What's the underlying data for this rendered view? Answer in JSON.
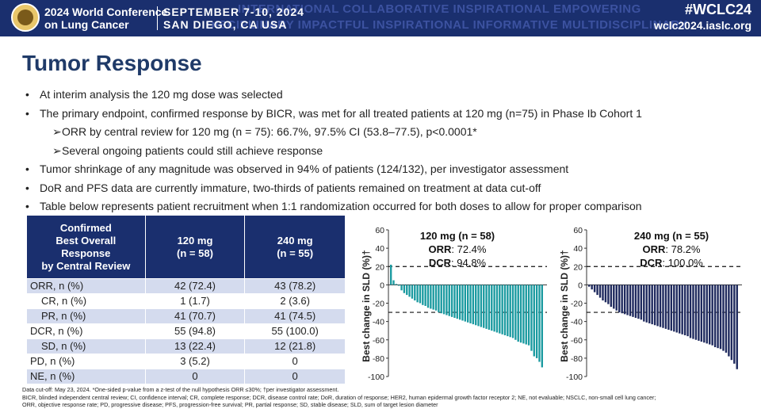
{
  "banner": {
    "conference_line1": "2024 World Conference",
    "conference_line2": "on Lung Cancer",
    "dates": "SEPTEMBER 7-10, 2024",
    "location": "SAN DIEGO, CA USA",
    "hashtag": "#WCLC24",
    "website": "wclc2024.iaslc.org",
    "bg_row1": "INTERNATIONAL  COLLABORATIVE  INSPIRATIONAL  EMPOWERING",
    "bg_row2": "DISCIPLINARY  IMPACTFUL  INSPIRATIONAL  INFORMATIVE  MULTIDISCIPLINARY",
    "colors": {
      "bg": "#1a2f6e",
      "text": "#ffffff"
    }
  },
  "title": "Tumor Response",
  "bullets": [
    "At interim analysis the 120 mg dose was selected",
    "The primary endpoint, confirmed response by BICR, was met for all treated patients at 120 mg (n=75) in Phase Ib Cohort 1"
  ],
  "sub_bullets": [
    "ORR by central review for 120 mg (n = 75): 66.7%, 97.5% CI (53.8–77.5), p<0.0001*",
    "Several ongoing patients could still achieve response"
  ],
  "bullets2": [
    "Tumor shrinkage of any magnitude was observed in 94% of patients (124/132), per investigator assessment",
    "DoR and PFS data are currently immature, two-thirds of patients remained on treatment at data cut-off",
    "Table below represents patient recruitment when 1:1 randomization occurred for both doses to allow for proper comparison"
  ],
  "table": {
    "header": {
      "col0": [
        "Confirmed",
        "Best Overall",
        "Response",
        "by Central Review"
      ],
      "col1": [
        "120 mg",
        "(n = 58)"
      ],
      "col2": [
        "240 mg",
        "(n = 55)"
      ]
    },
    "rows": [
      {
        "label": "ORR, n (%)",
        "v1": "42 (72.4)",
        "v2": "43 (78.2)",
        "indent": false
      },
      {
        "label": "CR, n (%)",
        "v1": "1 (1.7)",
        "v2": "2 (3.6)",
        "indent": true
      },
      {
        "label": "PR, n (%)",
        "v1": "41 (70.7)",
        "v2": "41 (74.5)",
        "indent": true
      },
      {
        "label": "DCR, n (%)",
        "v1": "55 (94.8)",
        "v2": "55 (100.0)",
        "indent": false
      },
      {
        "label": "SD, n (%)",
        "v1": "13 (22.4)",
        "v2": "12 (21.8)",
        "indent": true
      },
      {
        "label": "PD, n (%)",
        "v1": "3 (5.2)",
        "v2": "0",
        "indent": false
      },
      {
        "label": "NE, n (%)",
        "v1": "0",
        "v2": "0",
        "indent": false
      }
    ],
    "colors": {
      "header_bg": "#1a2f6e",
      "shade": "#d4dbee"
    }
  },
  "chart_data": [
    {
      "type": "bar",
      "title": "120 mg (n = 58)",
      "annotation_orr_label": "ORR",
      "annotation_orr": ": 72.4%",
      "annotation_dcr_label": "DCR",
      "annotation_dcr": ": 94.8%",
      "ylabel": "Best change in SLD (%)†",
      "ylim": [
        -100,
        60
      ],
      "yticks": [
        "60",
        "40",
        "20",
        "0",
        "-20",
        "-40",
        "-60",
        "-80",
        "-100"
      ],
      "reference_lines": [
        20,
        -30
      ],
      "color": "#1a9aa0",
      "values": [
        22,
        5,
        1,
        -1,
        -6,
        -9,
        -11,
        -13,
        -15,
        -17,
        -19,
        -20,
        -22,
        -23,
        -25,
        -26,
        -27,
        -28,
        -30,
        -31,
        -32,
        -33,
        -34,
        -35,
        -36,
        -37,
        -38,
        -39,
        -40,
        -41,
        -42,
        -43,
        -44,
        -45,
        -46,
        -47,
        -48,
        -49,
        -50,
        -51,
        -52,
        -53,
        -54,
        -55,
        -56,
        -57,
        -58,
        -60,
        -62,
        -63,
        -64,
        -65,
        -66,
        -72,
        -78,
        -80,
        -84,
        -90
      ]
    },
    {
      "type": "bar",
      "title": "240 mg (n = 55)",
      "annotation_orr_label": "ORR",
      "annotation_orr": ": 78.2%",
      "annotation_dcr_label": "DCR",
      "annotation_dcr": ": 100.0%",
      "ylabel": "Best change in SLD (%)†",
      "ylim": [
        -100,
        60
      ],
      "yticks": [
        "60",
        "40",
        "20",
        "0",
        "-20",
        "-40",
        "-60",
        "-80",
        "-100"
      ],
      "reference_lines": [
        20,
        -30
      ],
      "color": "#1f2a5e",
      "values": [
        -2,
        -5,
        -8,
        -11,
        -14,
        -17,
        -19,
        -21,
        -24,
        -26,
        -28,
        -30,
        -31,
        -32,
        -33,
        -34,
        -35,
        -36,
        -37,
        -38,
        -40,
        -41,
        -42,
        -43,
        -44,
        -45,
        -46,
        -47,
        -48,
        -49,
        -50,
        -51,
        -52,
        -53,
        -54,
        -55,
        -56,
        -58,
        -59,
        -60,
        -61,
        -62,
        -63,
        -64,
        -65,
        -66,
        -68,
        -69,
        -70,
        -72,
        -74,
        -78,
        -82,
        -86,
        -92
      ]
    }
  ],
  "footnote": {
    "line1": "Data cut-off: May 23, 2024. *One-sided p-value from a z-test of the null hypothesis ORR ≤30%; †per investigator assessment.",
    "line2": "BICR, blinded independent central review; CI, confidence interval; CR, complete response; DCR, disease control rate; DoR, duration of response; HER2, human epidermal growth factor receptor 2; NE, not evaluable; NSCLC, non-small cell lung cancer;",
    "line3": "ORR, objective response rate; PD, progressive disease; PFS, progression-free survival; PR, partial response; SD, stable disease; SLD, sum of target lesion diameter"
  }
}
